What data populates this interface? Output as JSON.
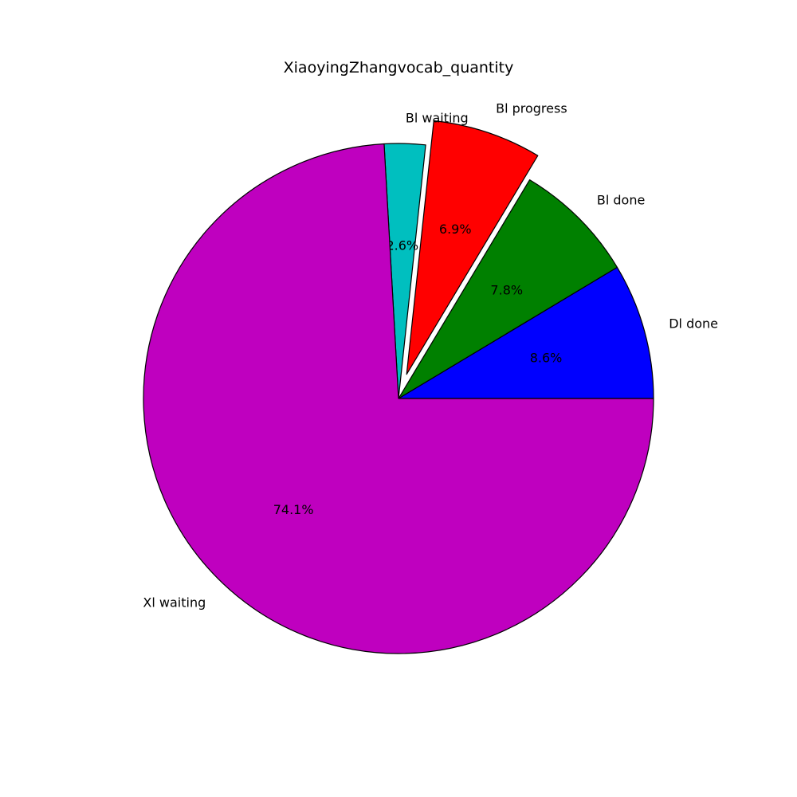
{
  "chart_data": {
    "type": "pie",
    "title": "XiaoyingZhangvocab_quantity",
    "slices": [
      {
        "label": "Dl done",
        "percent": 8.6,
        "color": "#0000ff",
        "exploded": false
      },
      {
        "label": "Bl done",
        "percent": 7.8,
        "color": "#008000",
        "exploded": false
      },
      {
        "label": "Bl progress",
        "percent": 6.9,
        "color": "#ff0000",
        "exploded": true
      },
      {
        "label": "Bl waiting",
        "percent": 2.6,
        "color": "#00bfbf",
        "exploded": false
      },
      {
        "label": "Xl waiting",
        "percent": 74.1,
        "color": "#bf00bf",
        "exploded": false
      }
    ],
    "start_angle": 0,
    "direction": "counterclockwise",
    "percent_labels": [
      "8.6%",
      "7.8%",
      "6.9%",
      "2.6%",
      "74.1%"
    ]
  }
}
